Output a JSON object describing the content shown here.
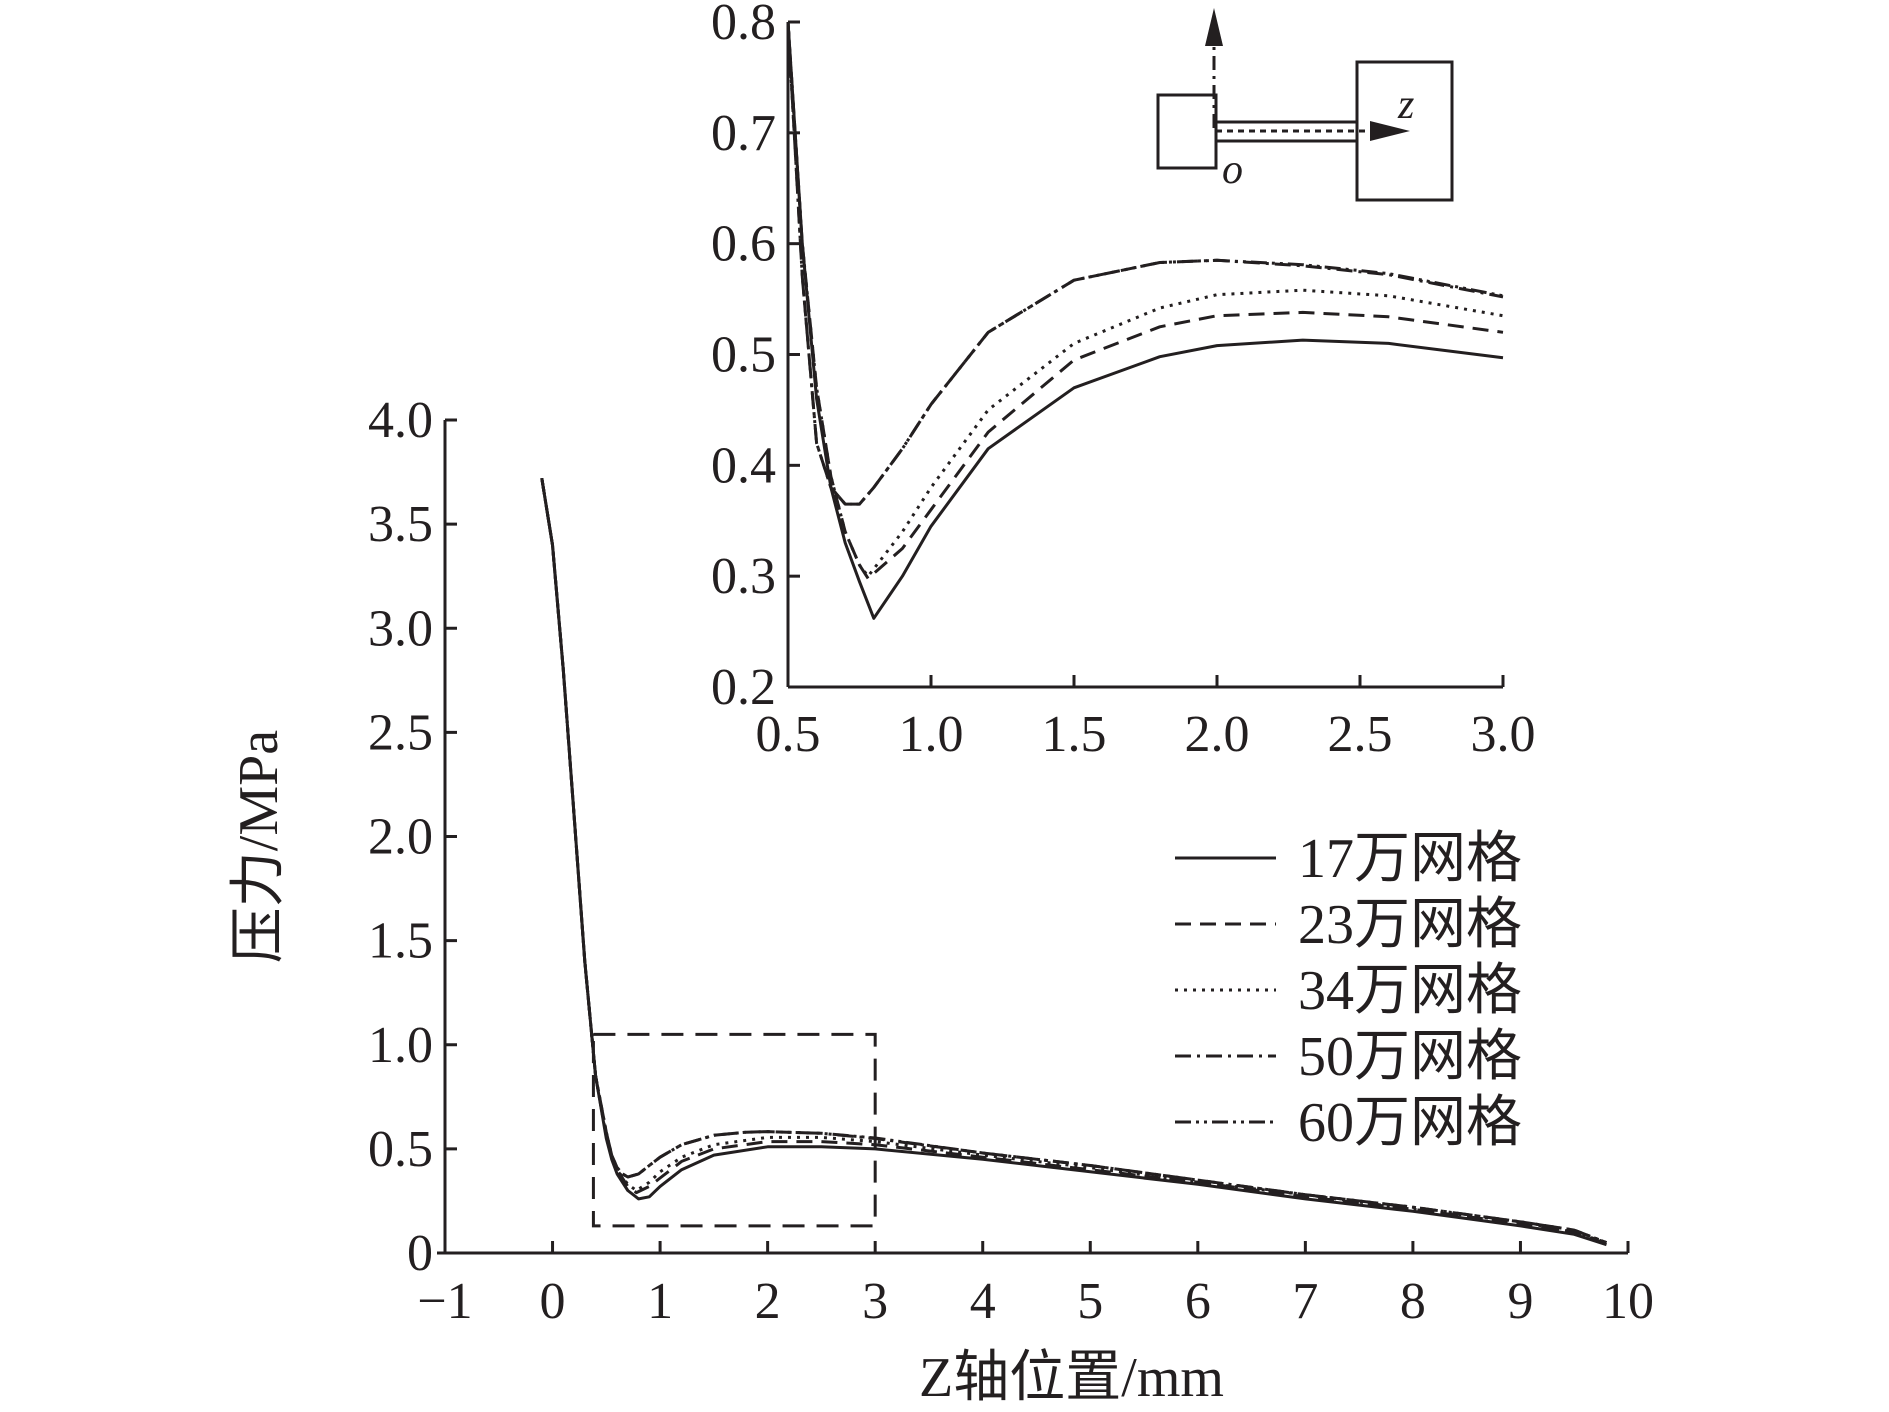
{
  "chart_data": [
    {
      "id": "main",
      "type": "line",
      "xlabel": "Z轴位置/mm",
      "ylabel": "压力/MPa",
      "xlim": [
        -1,
        10
      ],
      "ylim": [
        0,
        4.0
      ],
      "xticks": [
        -1,
        0,
        1,
        2,
        3,
        4,
        5,
        6,
        7,
        8,
        9,
        10
      ],
      "xtick_labels": [
        "−1",
        "0",
        "1",
        "2",
        "3",
        "4",
        "5",
        "6",
        "7",
        "8",
        "9",
        "10"
      ],
      "yticks": [
        0,
        0.5,
        1.0,
        1.5,
        2.0,
        2.5,
        3.0,
        3.5,
        4.0
      ],
      "ytick_labels": [
        "0",
        "0.5",
        "1.0",
        "1.5",
        "2.0",
        "2.5",
        "3.0",
        "3.5",
        "4.0"
      ],
      "grid": false,
      "legend_position": "right",
      "zoom_box": {
        "x": [
          0.38,
          3.0
        ],
        "y": [
          0.13,
          1.05
        ]
      },
      "series": [
        {
          "name": "17万网格",
          "style": "solid",
          "x": [
            -0.1,
            0.0,
            0.1,
            0.2,
            0.3,
            0.4,
            0.5,
            0.55,
            0.6,
            0.7,
            0.8,
            0.9,
            1.0,
            1.2,
            1.5,
            2.0,
            2.5,
            3.0,
            4.0,
            5.0,
            6.0,
            7.0,
            8.0,
            9.0,
            9.5,
            9.8
          ],
          "y": [
            3.72,
            3.4,
            2.8,
            2.1,
            1.4,
            0.85,
            0.55,
            0.45,
            0.38,
            0.3,
            0.26,
            0.27,
            0.32,
            0.4,
            0.47,
            0.51,
            0.51,
            0.5,
            0.45,
            0.39,
            0.33,
            0.26,
            0.2,
            0.13,
            0.09,
            0.04
          ]
        },
        {
          "name": "23万网格",
          "style": "dash",
          "x": [
            -0.1,
            0.0,
            0.1,
            0.2,
            0.3,
            0.4,
            0.5,
            0.55,
            0.6,
            0.7,
            0.78,
            0.9,
            1.0,
            1.2,
            1.5,
            2.0,
            2.5,
            3.0,
            4.0,
            5.0,
            6.0,
            7.0,
            8.0,
            9.0,
            9.5,
            9.8
          ],
          "y": [
            3.72,
            3.4,
            2.8,
            2.1,
            1.4,
            0.85,
            0.56,
            0.46,
            0.4,
            0.32,
            0.29,
            0.32,
            0.36,
            0.44,
            0.5,
            0.535,
            0.535,
            0.52,
            0.46,
            0.4,
            0.34,
            0.27,
            0.21,
            0.14,
            0.1,
            0.045
          ]
        },
        {
          "name": "34万网格",
          "style": "dot",
          "x": [
            -0.1,
            0.0,
            0.1,
            0.2,
            0.3,
            0.4,
            0.5,
            0.55,
            0.6,
            0.7,
            0.78,
            0.9,
            1.0,
            1.2,
            1.5,
            2.0,
            2.5,
            3.0,
            4.0,
            5.0,
            6.0,
            7.0,
            8.0,
            9.0,
            9.5,
            9.8
          ],
          "y": [
            3.72,
            3.4,
            2.8,
            2.1,
            1.4,
            0.85,
            0.56,
            0.46,
            0.4,
            0.33,
            0.3,
            0.34,
            0.39,
            0.46,
            0.52,
            0.555,
            0.555,
            0.535,
            0.47,
            0.41,
            0.34,
            0.28,
            0.21,
            0.15,
            0.1,
            0.05
          ]
        },
        {
          "name": "50万网格",
          "style": "dashdot",
          "x": [
            -0.1,
            0.0,
            0.1,
            0.2,
            0.3,
            0.4,
            0.5,
            0.55,
            0.6,
            0.65,
            0.7,
            0.8,
            0.9,
            1.0,
            1.2,
            1.5,
            1.8,
            2.0,
            2.5,
            3.0,
            4.0,
            5.0,
            6.0,
            7.0,
            8.0,
            9.0,
            9.5,
            9.8
          ],
          "y": [
            3.72,
            3.4,
            2.8,
            2.1,
            1.4,
            0.85,
            0.58,
            0.47,
            0.41,
            0.38,
            0.365,
            0.38,
            0.42,
            0.46,
            0.52,
            0.565,
            0.58,
            0.583,
            0.575,
            0.55,
            0.48,
            0.42,
            0.35,
            0.28,
            0.22,
            0.15,
            0.11,
            0.05
          ]
        },
        {
          "name": "60万网格",
          "style": "dashdotdot",
          "x": [
            -0.1,
            0.0,
            0.1,
            0.2,
            0.3,
            0.4,
            0.5,
            0.55,
            0.6,
            0.65,
            0.7,
            0.8,
            0.9,
            1.0,
            1.2,
            1.5,
            1.8,
            2.0,
            2.5,
            3.0,
            4.0,
            5.0,
            6.0,
            7.0,
            8.0,
            9.0,
            9.5,
            9.8
          ],
          "y": [
            3.72,
            3.4,
            2.8,
            2.1,
            1.4,
            0.85,
            0.58,
            0.47,
            0.41,
            0.38,
            0.365,
            0.38,
            0.42,
            0.46,
            0.52,
            0.565,
            0.58,
            0.583,
            0.575,
            0.552,
            0.48,
            0.42,
            0.35,
            0.28,
            0.22,
            0.15,
            0.11,
            0.05
          ]
        }
      ]
    },
    {
      "id": "inset",
      "type": "line",
      "xlim": [
        0.5,
        3.0
      ],
      "ylim": [
        0.2,
        0.8
      ],
      "xticks": [
        0.5,
        1.0,
        1.5,
        2.0,
        2.5,
        3.0
      ],
      "xtick_labels": [
        "0.5",
        "1.0",
        "1.5",
        "2.0",
        "2.5",
        "3.0"
      ],
      "yticks": [
        0.2,
        0.3,
        0.4,
        0.5,
        0.6,
        0.7,
        0.8
      ],
      "ytick_labels": [
        "0.2",
        "0.3",
        "0.4",
        "0.5",
        "0.6",
        "0.7",
        "0.8"
      ],
      "grid": false,
      "series": [
        {
          "name": "17万网格",
          "style": "solid",
          "x": [
            0.5,
            0.55,
            0.6,
            0.65,
            0.7,
            0.75,
            0.8,
            0.9,
            1.0,
            1.2,
            1.5,
            1.8,
            2.0,
            2.3,
            2.6,
            3.0
          ],
          "y": [
            0.8,
            0.6,
            0.46,
            0.38,
            0.33,
            0.295,
            0.262,
            0.3,
            0.345,
            0.415,
            0.47,
            0.498,
            0.508,
            0.513,
            0.51,
            0.497
          ]
        },
        {
          "name": "23万网格",
          "style": "dash",
          "x": [
            0.5,
            0.55,
            0.6,
            0.65,
            0.7,
            0.75,
            0.78,
            0.9,
            1.0,
            1.2,
            1.5,
            1.8,
            2.0,
            2.3,
            2.6,
            3.0
          ],
          "y": [
            0.8,
            0.6,
            0.47,
            0.39,
            0.34,
            0.31,
            0.298,
            0.325,
            0.36,
            0.43,
            0.495,
            0.525,
            0.535,
            0.538,
            0.534,
            0.52
          ]
        },
        {
          "name": "34万网格",
          "style": "dot",
          "x": [
            0.5,
            0.55,
            0.6,
            0.65,
            0.7,
            0.75,
            0.78,
            0.9,
            1.0,
            1.2,
            1.5,
            1.8,
            2.0,
            2.3,
            2.6,
            3.0
          ],
          "y": [
            0.8,
            0.6,
            0.47,
            0.39,
            0.34,
            0.31,
            0.3,
            0.34,
            0.38,
            0.45,
            0.51,
            0.542,
            0.554,
            0.558,
            0.553,
            0.535
          ]
        },
        {
          "name": "50万网格",
          "style": "dashdot",
          "x": [
            0.5,
            0.55,
            0.6,
            0.65,
            0.7,
            0.75,
            0.8,
            0.9,
            1.0,
            1.2,
            1.5,
            1.8,
            2.0,
            2.3,
            2.6,
            3.0
          ],
          "y": [
            0.8,
            0.57,
            0.42,
            0.38,
            0.365,
            0.365,
            0.38,
            0.415,
            0.455,
            0.52,
            0.567,
            0.583,
            0.585,
            0.58,
            0.572,
            0.552
          ]
        },
        {
          "name": "60万网格",
          "style": "dashdotdot",
          "x": [
            0.5,
            0.55,
            0.6,
            0.65,
            0.7,
            0.75,
            0.8,
            0.9,
            1.0,
            1.2,
            1.5,
            1.8,
            2.0,
            2.3,
            2.6,
            3.0
          ],
          "y": [
            0.8,
            0.57,
            0.42,
            0.38,
            0.365,
            0.365,
            0.38,
            0.415,
            0.455,
            0.52,
            0.567,
            0.583,
            0.585,
            0.581,
            0.573,
            0.553
          ]
        }
      ]
    }
  ],
  "legend": {
    "items": [
      {
        "label": "17万网格",
        "style": "solid"
      },
      {
        "label": "23万网格",
        "style": "dash"
      },
      {
        "label": "34万网格",
        "style": "dot"
      },
      {
        "label": "50万网格",
        "style": "dashdot"
      },
      {
        "label": "60万网格",
        "style": "dashdotdot"
      }
    ]
  },
  "schematic": {
    "axis_z_label": "z",
    "origin_label": "o"
  },
  "colors": {
    "ink": "#231f20",
    "background": "#ffffff"
  }
}
